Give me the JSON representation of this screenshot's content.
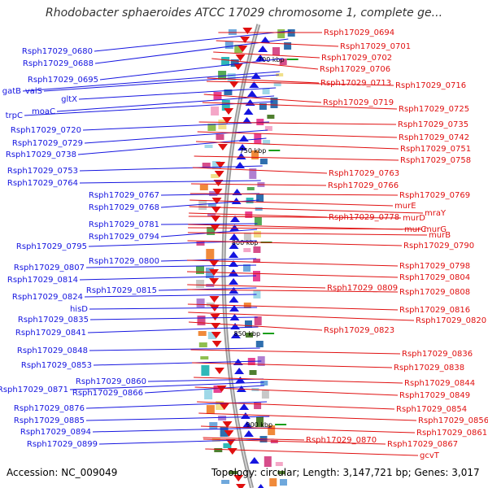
{
  "title": "Rhodobacter sphaeroides ATCC 17029 chromosome 1, complete ge...",
  "footer": {
    "accession": "Accession: NC_009049",
    "stats": "Topology: circular; Length: 3,147,721 bp; Genes: 3,017"
  },
  "colors": {
    "forward_strand": "#1515e0",
    "reverse_strand": "#e01010",
    "backbone": "#999999",
    "tick": "#1a9e1a"
  },
  "ticks": [
    "700 kbp",
    "750 kbp",
    "800 kbp",
    "850 kbp",
    "900 kbp"
  ],
  "left_labels": [
    "Rsph17029_0680",
    "Rsph17029_0688",
    "Rsph17029_0695",
    "gatB",
    "valS",
    "gltX",
    "trpC",
    "moaC",
    "Rsph17029_0720",
    "Rsph17029_0729",
    "Rsph17029_0738",
    "Rsph17029_0753",
    "Rsph17029_0764",
    "Rsph17029_0767",
    "Rsph17029_0768",
    "Rsph17029_0781",
    "Rsph17029_0794",
    "Rsph17029_0795",
    "Rsph17029_0800",
    "Rsph17029_0807",
    "Rsph17029_0814",
    "Rsph17029_0815",
    "Rsph17029_0824",
    "hisD",
    "Rsph17029_0835",
    "Rsph17029_0841",
    "Rsph17029_0848",
    "Rsph17029_0853",
    "Rsph17029_0860",
    "Rsph17029_0866",
    "Rsph17029_0871",
    "Rsph17029_0876",
    "Rsph17029_0885",
    "Rsph17029_0894",
    "Rsph17029_0899"
  ],
  "right_labels": [
    "Rsph17029_0694",
    "Rsph17029_0701",
    "Rsph17029_0702",
    "Rsph17029_0706",
    "Rsph17029_0713",
    "Rsph17029_0716",
    "Rsph17029_0719",
    "Rsph17029_0725",
    "Rsph17029_0735",
    "Rsph17029_0742",
    "Rsph17029_0751",
    "Rsph17029_0758",
    "Rsph17029_0763",
    "Rsph17029_0766",
    "Rsph17029_0769",
    "murE",
    "mraY",
    "Rsph17029_0778",
    "murD",
    "murC",
    "murG",
    "murB",
    "Rsph17029_0790",
    "Rsph17029_0798",
    "Rsph17029_0804",
    "Rsph17029_0809",
    "Rsph17029_0808",
    "Rsph17029_0816",
    "Rsph17029_0820",
    "Rsph17029_0823",
    "Rsph17029_0836",
    "Rsph17029_0838",
    "Rsph17029_0844",
    "Rsph17029_0849",
    "Rsph17029_0854",
    "Rsph17029_0856",
    "Rsph17029_0861",
    "Rsph17029_0870",
    "Rsph17029_0867",
    "gcvT"
  ]
}
